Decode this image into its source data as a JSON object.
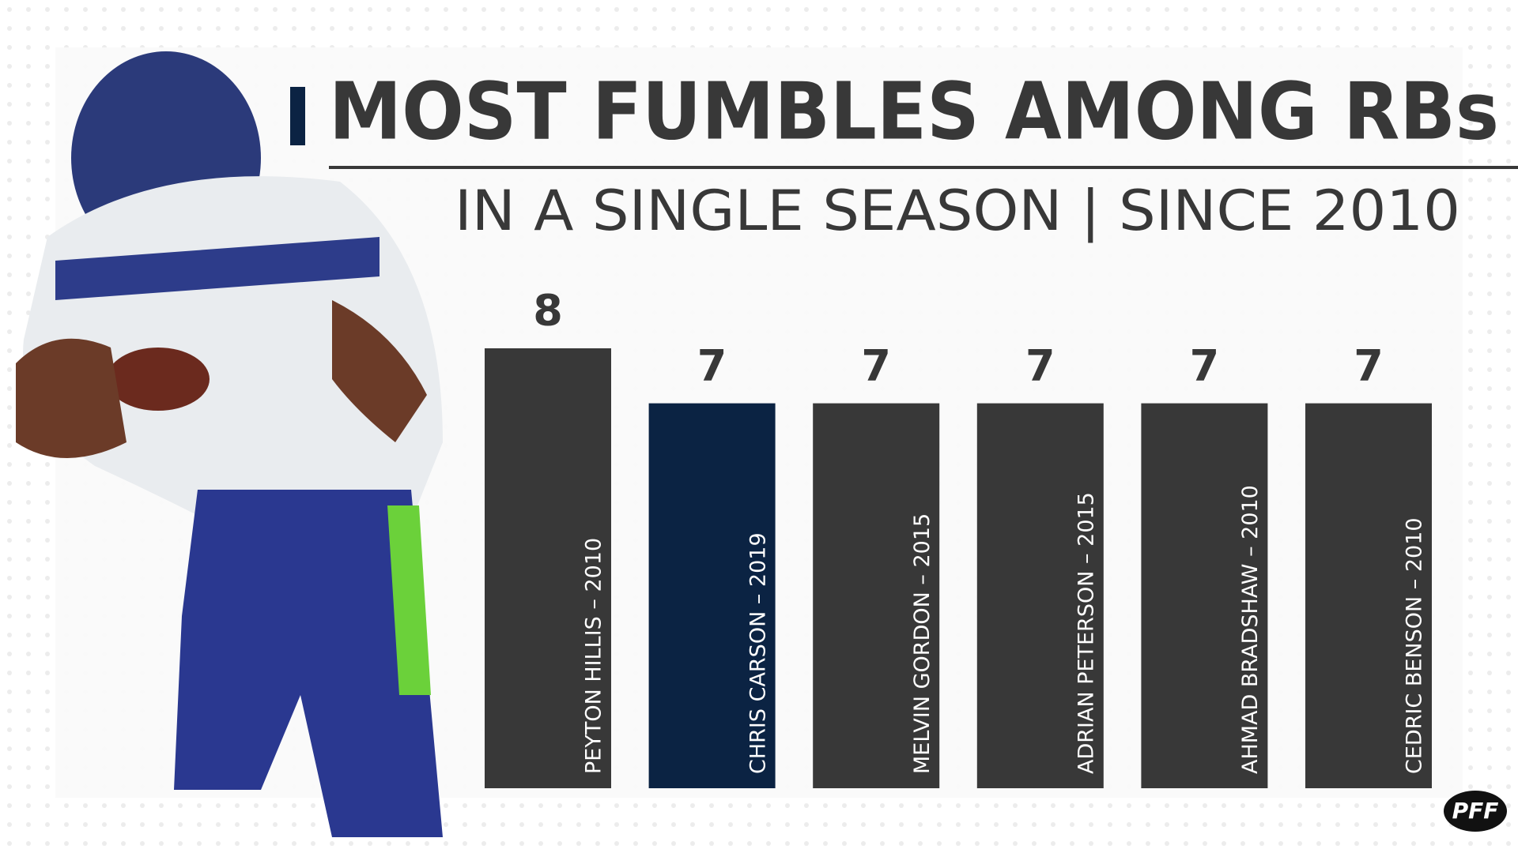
{
  "chart_data": {
    "type": "bar",
    "title": "MOST FUMBLES AMONG RBs",
    "subtitle": "IN A SINGLE SEASON | SINCE 2010",
    "categories": [
      "PEYTON HILLIS – 2010",
      "CHRIS CARSON – 2019",
      "MELVIN GORDON – 2015",
      "ADRIAN PETERSON – 2015",
      "AHMAD BRADSHAW – 2010",
      "CEDRIC BENSON – 2010"
    ],
    "values": [
      8,
      7,
      7,
      7,
      7,
      7
    ],
    "colors": [
      "#383838",
      "#0b2343",
      "#383838",
      "#383838",
      "#383838",
      "#383838"
    ]
  },
  "logo": "PFF"
}
